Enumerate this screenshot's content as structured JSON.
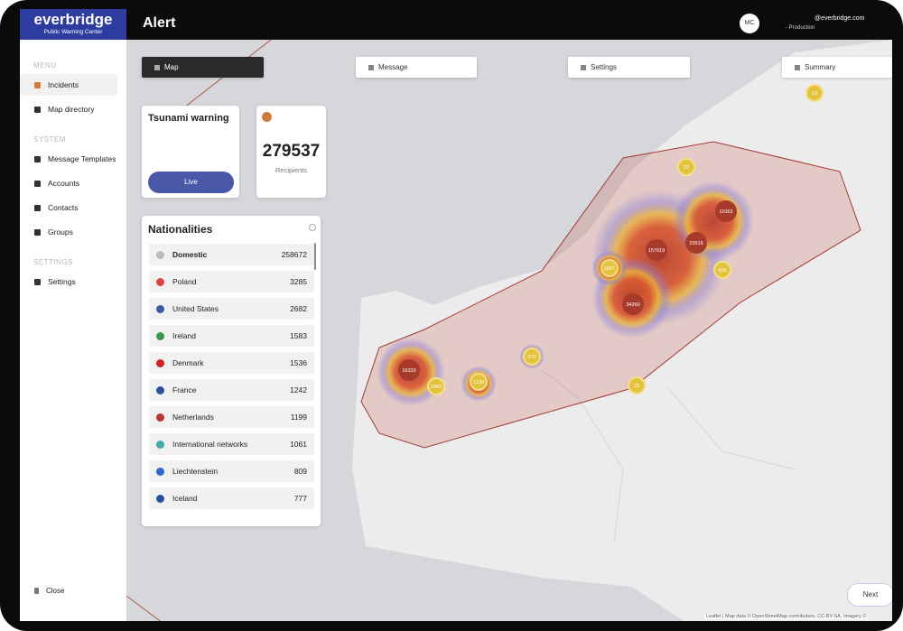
{
  "header": {
    "brand": "everbridge",
    "brand_sub": "Public Warning Center",
    "title": "Alert",
    "avatar": "MC",
    "user": "@everbridge.com",
    "env": "- Production"
  },
  "sidebar": {
    "sections": [
      {
        "label": "MENU",
        "items": [
          "Incidents",
          "Map directory"
        ]
      },
      {
        "label": "SYSTEM",
        "items": [
          "Message Templates",
          "Accounts",
          "Contacts",
          "Groups"
        ]
      },
      {
        "label": "SETTINGS",
        "items": [
          "Settings"
        ]
      }
    ],
    "close": "Close"
  },
  "tabs": [
    "Map",
    "Message",
    "Settings",
    "Summary"
  ],
  "alert_card": {
    "title": "Tsunami warning",
    "button": "Live"
  },
  "recipients_card": {
    "count": 279537,
    "label": "Recipients"
  },
  "nationalities": {
    "title": "Nationalities",
    "rows": [
      {
        "name": "Domestic",
        "count": 258672
      },
      {
        "name": "Poland",
        "count": 3285
      },
      {
        "name": "United States",
        "count": 2682
      },
      {
        "name": "Ireland",
        "count": 1583
      },
      {
        "name": "Denmark",
        "count": 1536
      },
      {
        "name": "France",
        "count": 1242
      },
      {
        "name": "Netherlands",
        "count": 1199
      },
      {
        "name": "International networks",
        "count": 1061
      },
      {
        "name": "Liechtenstein",
        "count": 809
      },
      {
        "name": "Iceland",
        "count": 777
      }
    ]
  },
  "map": {
    "clusters": [
      19,
      22,
      11063,
      157619,
      23516,
      1667,
      436,
      34260,
      16333,
      2960,
      1130,
      370,
      23
    ],
    "attribution": "Leaflet | Map data © OpenStreetMap contributors, CC-BY-SA, Imagery ©"
  },
  "next": "Next"
}
